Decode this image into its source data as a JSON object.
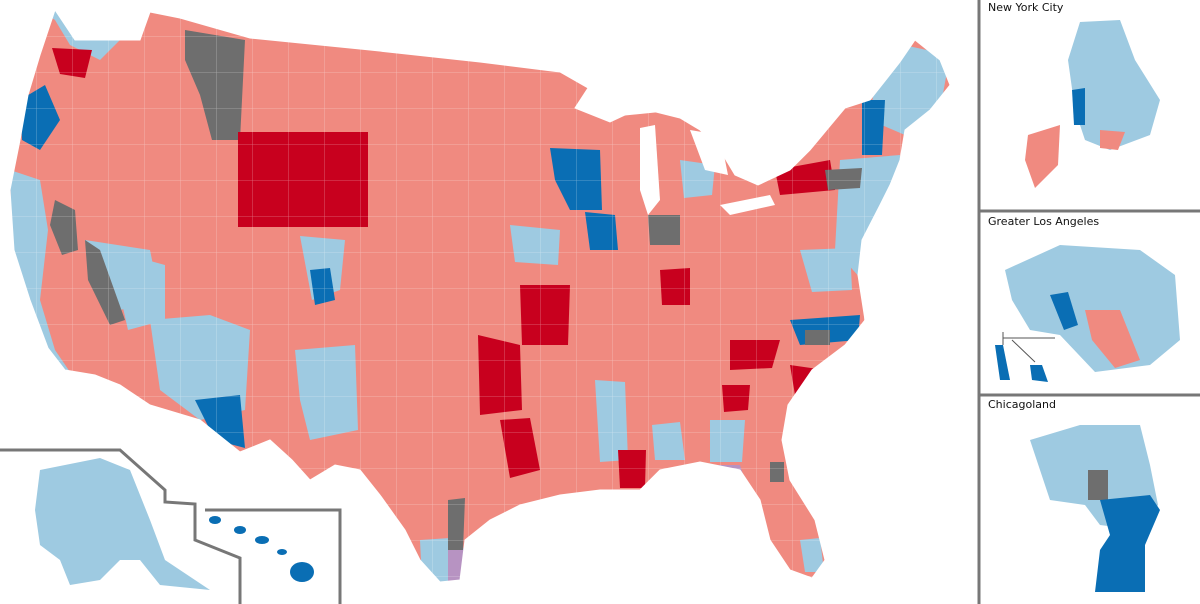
{
  "colors": {
    "dem_strong": "#0a6eb4",
    "dem_light": "#9ecae1",
    "rep_strong": "#c8001e",
    "rep_light": "#f08a80",
    "tie_gray": "#6e6e6e",
    "other_purple": "#b793c2",
    "border_white": "#ffffff",
    "frame_gray": "#777777"
  },
  "insets": {
    "nyc_title": "New York City",
    "la_title": "Greater Los Angeles",
    "chicago_title": "Chicagoland"
  }
}
